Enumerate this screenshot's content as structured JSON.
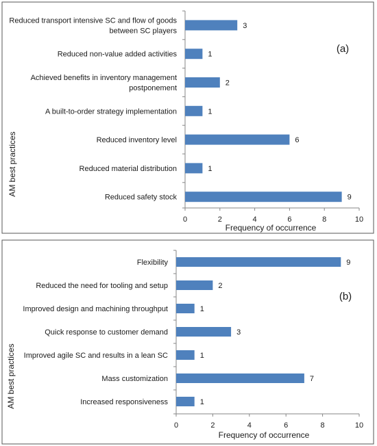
{
  "chart_data": [
    {
      "type": "bar",
      "orientation": "horizontal",
      "panel_label": "(a)",
      "xlabel": "Frequency of occurrence",
      "ylabel": "AM best practices",
      "xlim": [
        0,
        10
      ],
      "xticks": [
        "0",
        "2",
        "4",
        "6",
        "8",
        "10"
      ],
      "bar_color": "#4f81bd",
      "data_labels": true,
      "categories": [
        [
          "Reduced transport intensive SC and flow of goods",
          "between SC players"
        ],
        [
          "Reduced non-value added activities"
        ],
        [
          "Achieved benefits in inventory management",
          "postponement"
        ],
        [
          "A built-to-order strategy implementation"
        ],
        [
          "Reduced inventory level"
        ],
        [
          "Reduced material distribution"
        ],
        [
          "Reduced safety stock"
        ]
      ],
      "values": [
        3,
        1,
        2,
        1,
        6,
        1,
        9
      ]
    },
    {
      "type": "bar",
      "orientation": "horizontal",
      "panel_label": "(b)",
      "xlabel": "Frequency of occurrence",
      "ylabel": "AM best practices",
      "xlim": [
        0,
        10
      ],
      "xticks": [
        "0",
        "2",
        "4",
        "6",
        "8",
        "10"
      ],
      "bar_color": "#4f81bd",
      "data_labels": true,
      "categories": [
        [
          "Flexibility"
        ],
        [
          "Reduced the need for tooling and setup"
        ],
        [
          "Improved design and machining throughput"
        ],
        [
          "Quick response to customer demand"
        ],
        [
          "Improved agile SC and results in a lean SC"
        ],
        [
          "Mass customization"
        ],
        [
          "Increased responsiveness"
        ]
      ],
      "values": [
        9,
        2,
        1,
        3,
        1,
        7,
        1
      ]
    }
  ]
}
